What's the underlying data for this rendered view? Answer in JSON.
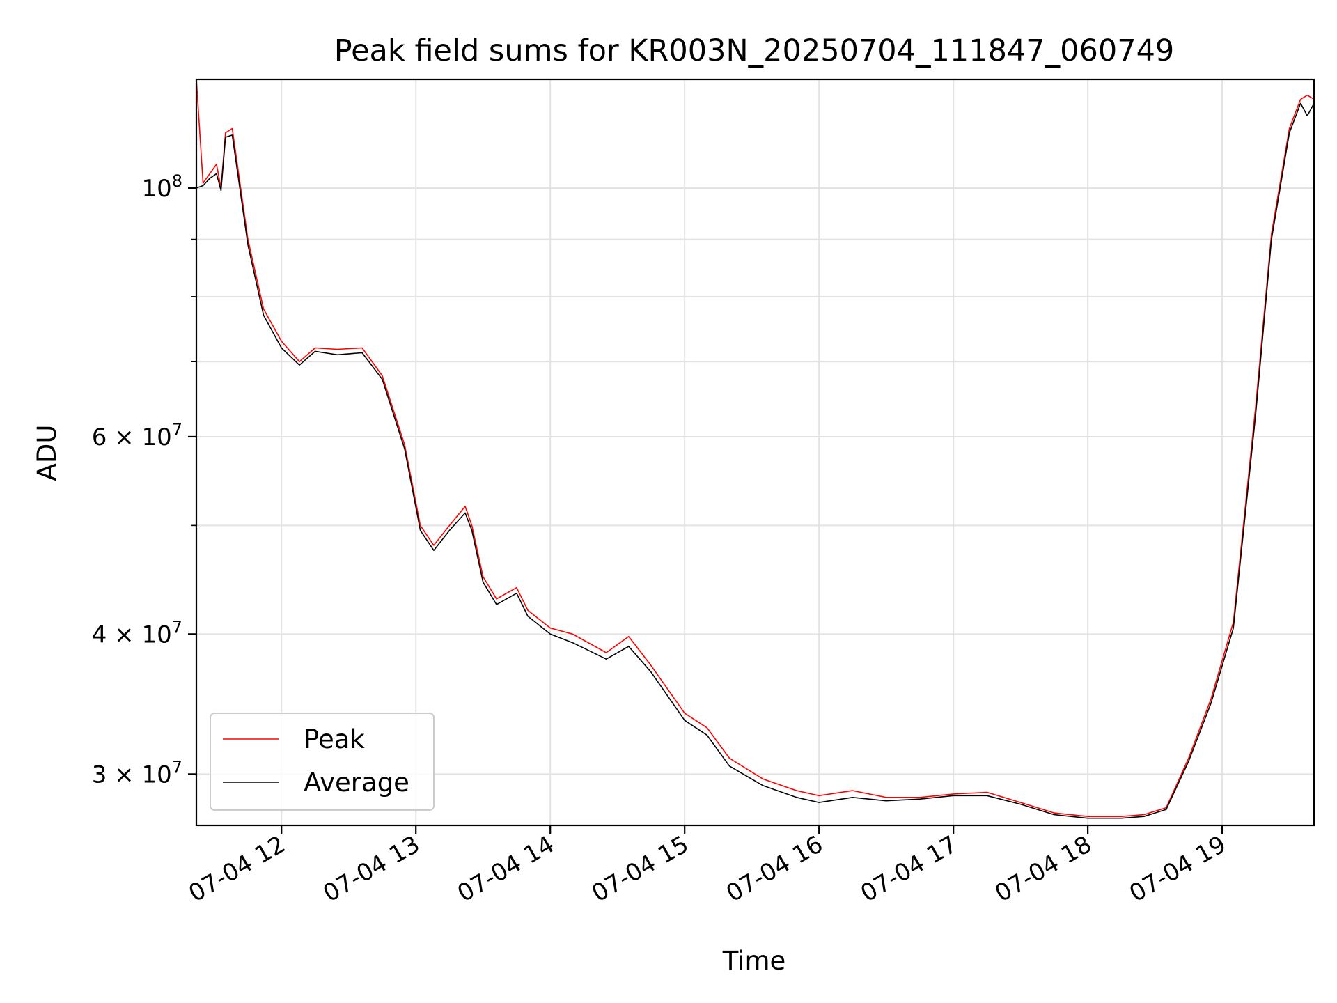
{
  "chart_data": {
    "type": "line",
    "title": "Peak field sums for KR003N_20250704_111847_060749",
    "xlabel": "Time",
    "ylabel": "ADU",
    "xscale": "time",
    "yscale": "log",
    "xlim": [
      "2025-07-04 11:22",
      "2025-07-04 19:41"
    ],
    "ylim": [
      27000000,
      125000000
    ],
    "grid": true,
    "legend_position": "lower-left",
    "x_ticks": [
      {
        "value": "2025-07-04 12:00",
        "label": "07-04 12"
      },
      {
        "value": "2025-07-04 13:00",
        "label": "07-04 13"
      },
      {
        "value": "2025-07-04 14:00",
        "label": "07-04 14"
      },
      {
        "value": "2025-07-04 15:00",
        "label": "07-04 15"
      },
      {
        "value": "2025-07-04 16:00",
        "label": "07-04 16"
      },
      {
        "value": "2025-07-04 17:00",
        "label": "07-04 17"
      },
      {
        "value": "2025-07-04 18:00",
        "label": "07-04 18"
      },
      {
        "value": "2025-07-04 19:00",
        "label": "07-04 19"
      }
    ],
    "y_ticks": [
      {
        "value": 100000000,
        "base": "10",
        "exp": "8"
      },
      {
        "value": 60000000,
        "coef": "6",
        "base": "10",
        "exp": "7"
      },
      {
        "value": 40000000,
        "coef": "4",
        "base": "10",
        "exp": "7"
      },
      {
        "value": 30000000,
        "coef": "3",
        "base": "10",
        "exp": "7"
      }
    ],
    "y_minor_ticks": [
      90000000,
      80000000,
      70000000,
      50000000
    ],
    "x": [
      "2025-07-04 11:22",
      "2025-07-04 11:25",
      "2025-07-04 11:28",
      "2025-07-04 11:31",
      "2025-07-04 11:33",
      "2025-07-04 11:35",
      "2025-07-04 11:38",
      "2025-07-04 11:45",
      "2025-07-04 11:52",
      "2025-07-04 12:00",
      "2025-07-04 12:08",
      "2025-07-04 12:15",
      "2025-07-04 12:25",
      "2025-07-04 12:36",
      "2025-07-04 12:45",
      "2025-07-04 12:55",
      "2025-07-04 13:02",
      "2025-07-04 13:08",
      "2025-07-04 13:15",
      "2025-07-04 13:22",
      "2025-07-04 13:25",
      "2025-07-04 13:30",
      "2025-07-04 13:36",
      "2025-07-04 13:45",
      "2025-07-04 13:50",
      "2025-07-04 14:00",
      "2025-07-04 14:10",
      "2025-07-04 14:25",
      "2025-07-04 14:35",
      "2025-07-04 14:45",
      "2025-07-04 15:00",
      "2025-07-04 15:10",
      "2025-07-04 15:20",
      "2025-07-04 15:35",
      "2025-07-04 15:50",
      "2025-07-04 16:00",
      "2025-07-04 16:15",
      "2025-07-04 16:30",
      "2025-07-04 16:45",
      "2025-07-04 17:00",
      "2025-07-04 17:15",
      "2025-07-04 17:30",
      "2025-07-04 17:45",
      "2025-07-04 18:00",
      "2025-07-04 18:15",
      "2025-07-04 18:25",
      "2025-07-04 18:35",
      "2025-07-04 18:45",
      "2025-07-04 18:55",
      "2025-07-04 19:05",
      "2025-07-04 19:15",
      "2025-07-04 19:22",
      "2025-07-04 19:30",
      "2025-07-04 19:35",
      "2025-07-04 19:38",
      "2025-07-04 19:41"
    ],
    "series": [
      {
        "name": "Peak",
        "color": "#ff0000",
        "values": [
          125000000,
          101000000,
          103000000,
          105000000,
          100000000,
          112000000,
          113000000,
          90000000,
          78000000,
          73000000,
          70000000,
          72000000,
          71800000,
          72000000,
          68000000,
          59000000,
          50000000,
          48000000,
          50000000,
          52000000,
          50000000,
          45000000,
          43000000,
          44000000,
          42000000,
          40500000,
          40000000,
          38500000,
          39800000,
          37500000,
          34000000,
          33000000,
          31000000,
          29700000,
          29000000,
          28700000,
          29000000,
          28600000,
          28600000,
          28800000,
          28900000,
          28300000,
          27700000,
          27500000,
          27500000,
          27600000,
          28000000,
          31000000,
          35000000,
          41000000,
          64000000,
          91000000,
          113000000,
          120000000,
          121000000,
          120000000
        ]
      },
      {
        "name": "Average",
        "color": "#000000",
        "values": [
          100000000,
          100500000,
          102000000,
          103000000,
          99500000,
          111000000,
          111500000,
          89000000,
          77000000,
          72000000,
          69500000,
          71500000,
          71000000,
          71300000,
          67500000,
          58500000,
          49500000,
          47500000,
          49500000,
          51300000,
          49500000,
          44500000,
          42500000,
          43500000,
          41500000,
          40000000,
          39300000,
          38000000,
          39000000,
          37000000,
          33500000,
          32500000,
          30500000,
          29300000,
          28600000,
          28300000,
          28600000,
          28400000,
          28500000,
          28700000,
          28700000,
          28200000,
          27600000,
          27400000,
          27400000,
          27500000,
          27900000,
          30800000,
          34700000,
          40500000,
          63000000,
          90000000,
          112000000,
          119000000,
          116000000,
          119000000
        ]
      }
    ]
  }
}
